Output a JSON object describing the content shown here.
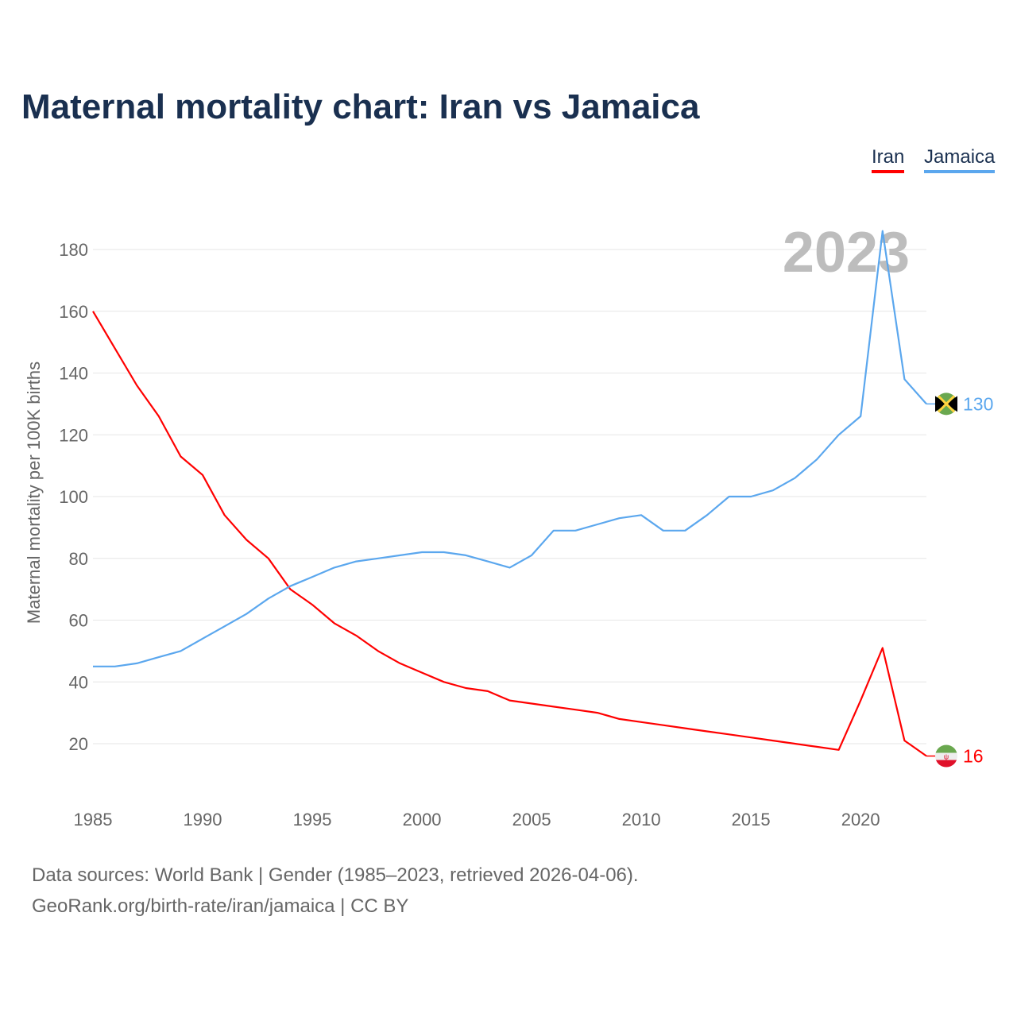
{
  "chart_data": {
    "type": "line",
    "title": "Maternal mortality chart: Iran vs Jamaica",
    "xlabel": "",
    "ylabel": "Maternal mortality per 100K births",
    "xlim": [
      1985,
      2023
    ],
    "ylim": [
      5,
      190
    ],
    "x_ticks": [
      1985,
      1990,
      1995,
      2000,
      2005,
      2010,
      2015,
      2020
    ],
    "y_ticks": [
      20,
      40,
      60,
      80,
      100,
      120,
      140,
      160,
      180
    ],
    "grid": true,
    "legend_placement": "top-right",
    "year_watermark": "2023",
    "x": [
      1985,
      1986,
      1987,
      1988,
      1989,
      1990,
      1991,
      1992,
      1993,
      1994,
      1995,
      1996,
      1997,
      1998,
      1999,
      2000,
      2001,
      2002,
      2003,
      2004,
      2005,
      2006,
      2007,
      2008,
      2009,
      2010,
      2011,
      2012,
      2013,
      2014,
      2015,
      2016,
      2017,
      2018,
      2019,
      2020,
      2021,
      2022,
      2023
    ],
    "series": [
      {
        "name": "Iran",
        "color": "#ff0000",
        "end_label": "16",
        "values": [
          160,
          148,
          136,
          126,
          113,
          107,
          94,
          86,
          80,
          70,
          65,
          59,
          55,
          50,
          46,
          43,
          40,
          38,
          37,
          34,
          33,
          32,
          31,
          30,
          28,
          27,
          26,
          25,
          24,
          23,
          22,
          21,
          20,
          19,
          18,
          34,
          51,
          21,
          16
        ]
      },
      {
        "name": "Jamaica",
        "color": "#5ba7ee",
        "end_label": "130",
        "values": [
          45,
          45,
          46,
          48,
          50,
          54,
          58,
          62,
          67,
          71,
          74,
          77,
          79,
          80,
          81,
          82,
          82,
          81,
          79,
          77,
          81,
          89,
          89,
          91,
          93,
          94,
          89,
          89,
          94,
          100,
          100,
          102,
          106,
          112,
          120,
          126,
          186,
          138,
          130
        ]
      }
    ]
  },
  "footer": {
    "line1": "Data sources: World Bank | Gender (1985–2023, retrieved 2026-04-06).",
    "line2": "GeoRank.org/birth-rate/iran/jamaica | CC BY"
  }
}
